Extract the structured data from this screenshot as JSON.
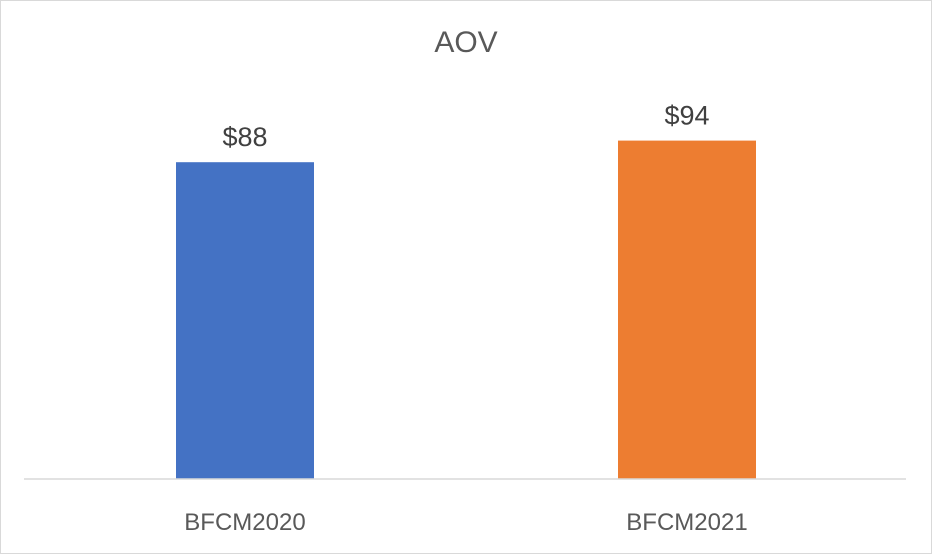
{
  "chart_data": {
    "type": "bar",
    "title": "AOV",
    "categories": [
      "BFCM2020",
      "BFCM2021"
    ],
    "values": [
      88,
      94
    ],
    "data_labels": [
      "$88",
      "$94"
    ],
    "colors": [
      "#4472c4",
      "#ed7d31"
    ],
    "ylim": [
      0,
      100
    ],
    "grid": false,
    "legend": "none",
    "xlabel": "",
    "ylabel": ""
  }
}
